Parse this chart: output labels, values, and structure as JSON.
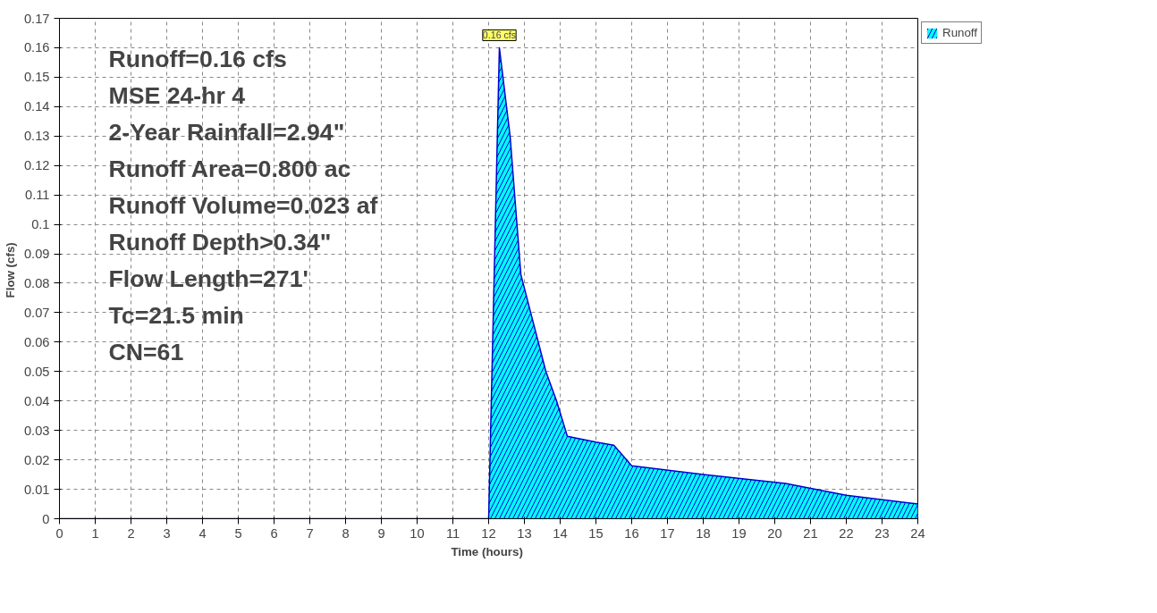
{
  "chart_data": {
    "type": "area",
    "xlabel": "Time  (hours)",
    "ylabel": "Flow  (cfs)",
    "x": [
      0,
      12.0,
      12.3,
      12.6,
      12.9,
      13.6,
      13.9,
      14.2,
      15.0,
      15.5,
      16.0,
      18.0,
      20.3,
      22.0,
      24.0
    ],
    "series": [
      {
        "name": "Runoff",
        "color": "#00ffff",
        "values": [
          0,
          0,
          0.16,
          0.13,
          0.083,
          0.05,
          0.04,
          0.028,
          0.026,
          0.025,
          0.018,
          0.015,
          0.012,
          0.008,
          0.005
        ]
      }
    ],
    "xlim": [
      0,
      24
    ],
    "xticks": [
      0,
      1,
      2,
      3,
      4,
      5,
      6,
      7,
      8,
      9,
      10,
      11,
      12,
      13,
      14,
      15,
      16,
      17,
      18,
      19,
      20,
      21,
      22,
      23,
      24
    ],
    "ylim": [
      0,
      0.17
    ],
    "yticks": [
      0,
      0.01,
      0.02,
      0.03,
      0.04,
      0.05,
      0.06,
      0.07,
      0.08,
      0.09,
      0.1,
      0.11,
      0.12,
      0.13,
      0.14,
      0.15,
      0.16,
      0.17
    ],
    "grid": true,
    "legend": "top right",
    "annotations": [
      "Runoff=0.16 cfs",
      "MSE 24-hr 4",
      "2-Year Rainfall=2.94\"",
      "Runoff Area=0.800 ac",
      "Runoff Volume=0.023 af",
      "Runoff Depth>0.34\"",
      "Flow Length=271'",
      "Tc=21.5 min",
      "CN=61",
      {
        "text": "0.16 cfs",
        "x": 12.3,
        "y": 0.16
      }
    ]
  }
}
